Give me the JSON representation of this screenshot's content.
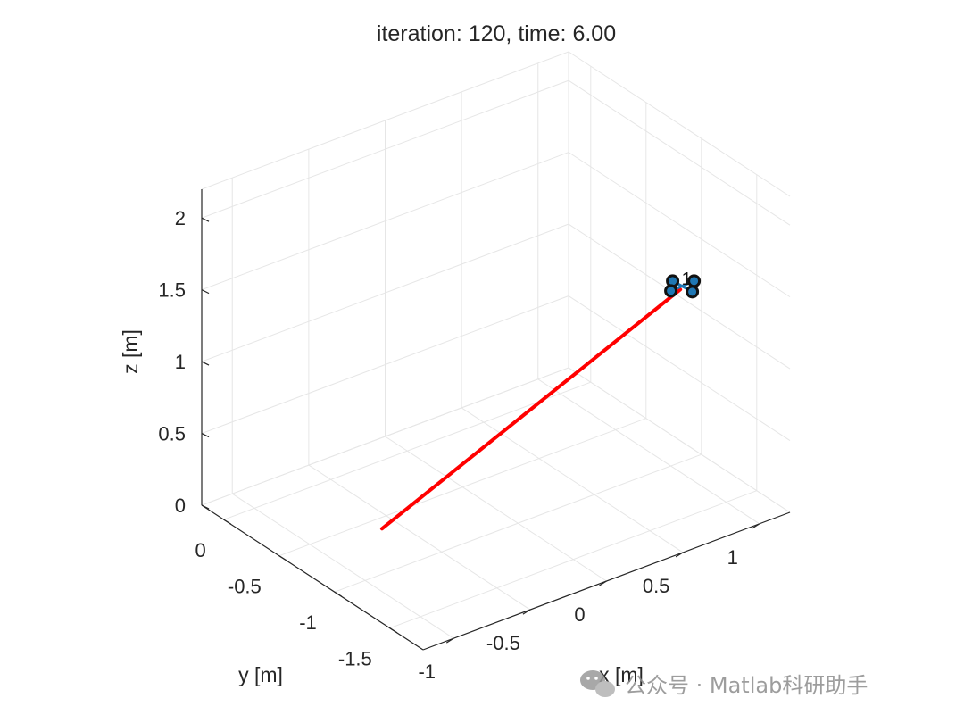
{
  "chart_data": {
    "type": "line",
    "title": "iteration: 120, time: 6.00",
    "xlabel": "x [m]",
    "ylabel": "y [m]",
    "zlabel": "z [m]",
    "xlim": [
      -1.2,
      1.2
    ],
    "ylim": [
      -1.8,
      0.2
    ],
    "zlim": [
      0,
      2.2
    ],
    "x_ticks": [
      "-1",
      "-0.5",
      "0",
      "0.5",
      "1"
    ],
    "x_tick_values": [
      -1,
      -0.5,
      0,
      0.5,
      1
    ],
    "y_ticks": [
      "-1.5",
      "-1",
      "-0.5",
      "0"
    ],
    "y_tick_values": [
      -1.5,
      -1,
      -0.5,
      0
    ],
    "z_ticks": [
      "0",
      "0.5",
      "1",
      "1.5",
      "2"
    ],
    "z_tick_values": [
      0,
      0.5,
      1,
      1.5,
      2
    ],
    "grid": true,
    "view": "3-D",
    "series": [
      {
        "color": "#0000ff",
        "x": [
          -0.6,
          0.7
        ],
        "y": [
          -0.6,
          -1.5
        ],
        "z": [
          0.0,
          1.6
        ]
      },
      {
        "color": "#ff0000",
        "x": [
          -0.6,
          0.7
        ],
        "y": [
          -0.6,
          -1.5
        ],
        "z": [
          0.0,
          1.6
        ]
      }
    ],
    "drone": {
      "label": "1",
      "color": "#1f77b4",
      "x": 0.72,
      "y": -1.5,
      "z": 1.62
    }
  },
  "watermark": {
    "icon": "wechat-icon",
    "text": "公众号 · Matlab科研助手"
  }
}
